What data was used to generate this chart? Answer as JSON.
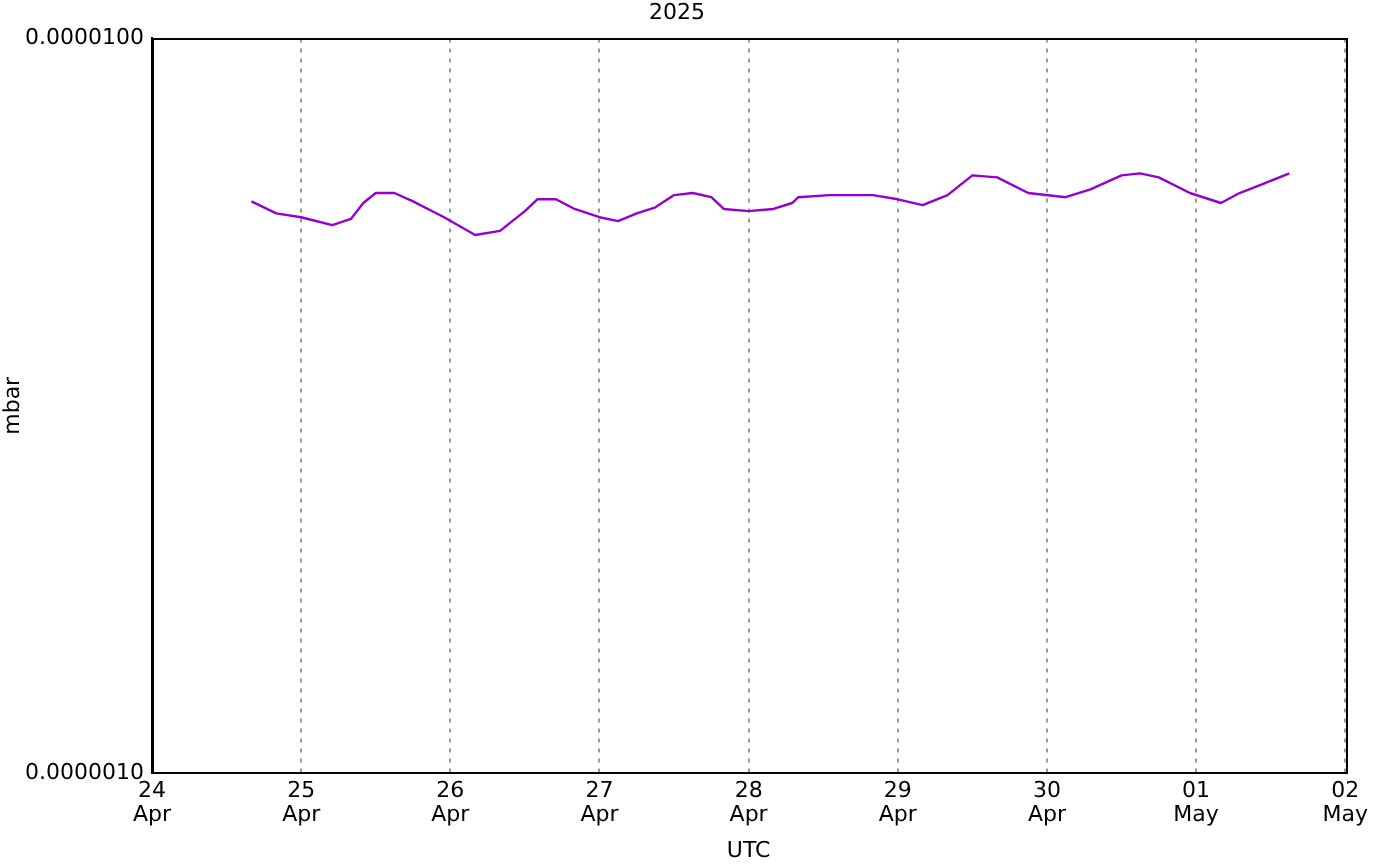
{
  "chart_data": {
    "type": "line",
    "title": "2025",
    "xlabel": "UTC",
    "ylabel": "mbar",
    "log": "y",
    "grid": "x",
    "legend": false,
    "marker": "none",
    "line_style": "solid",
    "xlim": [
      "2025-04-24",
      "2025-05-02"
    ],
    "xticks": [
      {
        "value": "2025-04-24",
        "label": "24\nApr"
      },
      {
        "value": "2025-04-25",
        "label": "25\nApr"
      },
      {
        "value": "2025-04-26",
        "label": "26\nApr"
      },
      {
        "value": "2025-04-27",
        "label": "27\nApr"
      },
      {
        "value": "2025-04-28",
        "label": "28\nApr"
      },
      {
        "value": "2025-04-29",
        "label": "29\nApr"
      },
      {
        "value": "2025-04-30",
        "label": "30\nApr"
      },
      {
        "value": "2025-05-01",
        "label": "01\nMay"
      },
      {
        "value": "2025-05-02",
        "label": "02\nMay"
      }
    ],
    "ylim": [
      1e-06,
      1e-05
    ],
    "yticks": [
      {
        "value": 1e-06,
        "label": "0.0000010"
      },
      {
        "value": 1e-05,
        "label": "0.0000100"
      }
    ],
    "x": [
      "2025-04-24T16:00",
      "2025-04-24T20:00",
      "2025-04-25T00:00",
      "2025-04-25T05:00",
      "2025-04-25T08:00",
      "2025-04-25T10:00",
      "2025-04-25T12:00",
      "2025-04-25T15:00",
      "2025-04-25T18:00",
      "2025-04-25T23:00",
      "2025-04-26T04:00",
      "2025-04-26T08:00",
      "2025-04-26T12:00",
      "2025-04-26T14:00",
      "2025-04-26T17:00",
      "2025-04-26T20:00",
      "2025-04-27T00:00",
      "2025-04-27T03:00",
      "2025-04-27T06:00",
      "2025-04-27T09:00",
      "2025-04-27T12:00",
      "2025-04-27T15:00",
      "2025-04-27T18:00",
      "2025-04-27T20:00",
      "2025-04-28T00:00",
      "2025-04-28T04:00",
      "2025-04-28T07:00",
      "2025-04-28T08:00",
      "2025-04-28T13:00",
      "2025-04-28T20:00",
      "2025-04-29T00:00",
      "2025-04-29T04:00",
      "2025-04-29T08:00",
      "2025-04-29T12:00",
      "2025-04-29T16:00",
      "2025-04-29T21:00",
      "2025-04-30T03:00",
      "2025-04-30T07:00",
      "2025-04-30T12:00",
      "2025-04-30T15:00",
      "2025-04-30T18:00",
      "2025-04-30T23:00",
      "2025-05-01T04:00",
      "2025-05-01T07:00",
      "2025-05-01T11:00",
      "2025-05-01T15:00"
    ],
    "series": [
      {
        "color": "#9400d3",
        "values": [
          6e-06,
          5.78e-06,
          5.71e-06,
          5.57e-06,
          5.68e-06,
          5.97e-06,
          6.16e-06,
          6.16e-06,
          6e-06,
          5.71e-06,
          5.4e-06,
          5.47e-06,
          5.82e-06,
          6.04e-06,
          6.04e-06,
          5.86e-06,
          5.71e-06,
          5.64e-06,
          5.78e-06,
          5.89e-06,
          6.12e-06,
          6.16e-06,
          6.08e-06,
          5.86e-06,
          5.82e-06,
          5.86e-06,
          5.97e-06,
          6.08e-06,
          6.12e-06,
          6.12e-06,
          6.04e-06,
          5.93e-06,
          6.12e-06,
          6.51e-06,
          6.47e-06,
          6.16e-06,
          6.08e-06,
          6.23e-06,
          6.51e-06,
          6.55e-06,
          6.47e-06,
          6.16e-06,
          5.97e-06,
          6.16e-06,
          6.35e-06,
          6.55e-06
        ]
      }
    ]
  }
}
